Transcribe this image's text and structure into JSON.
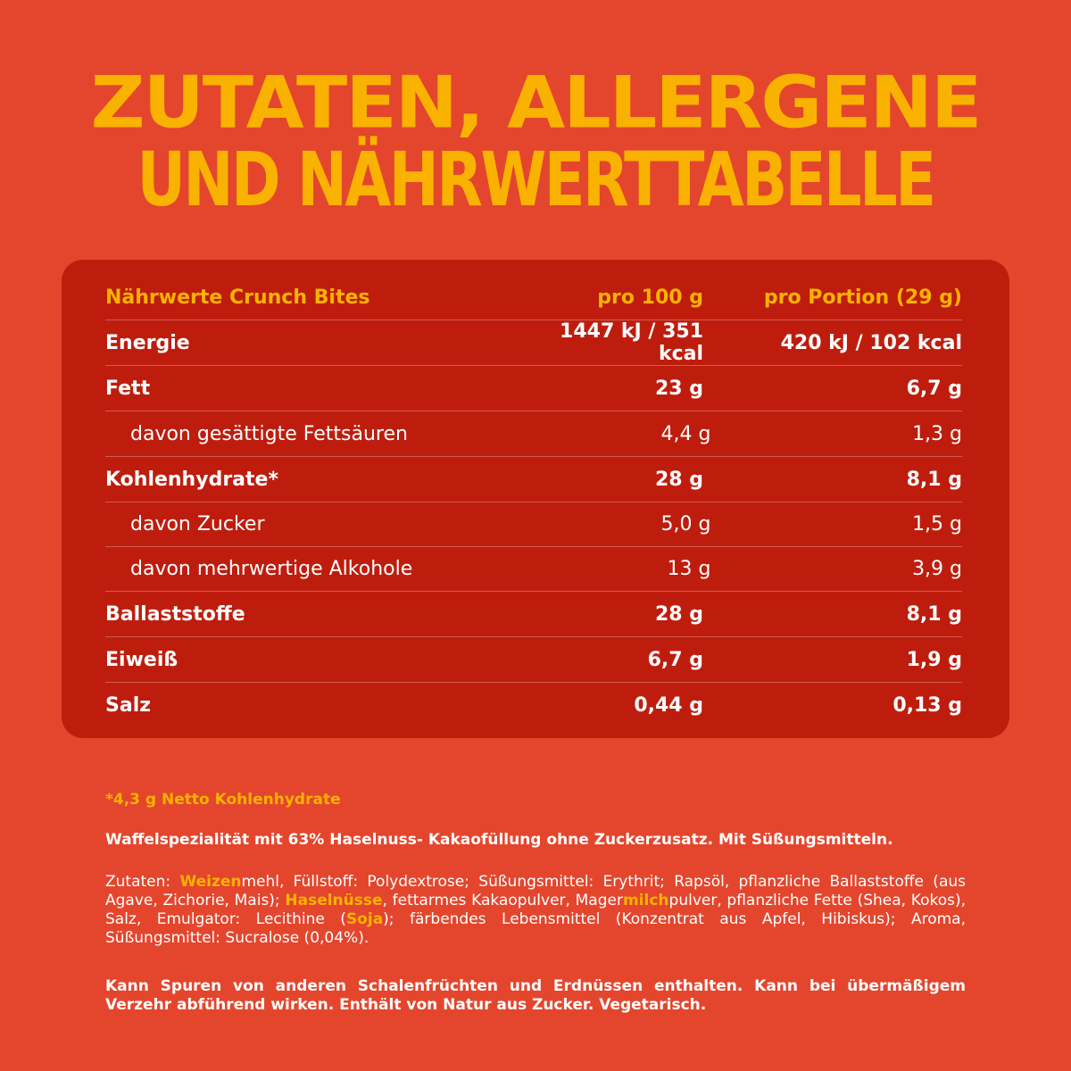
{
  "title": {
    "line1": "ZUTATEN, ALLERGENE",
    "line2": "UND NÄHRWERTTABELLE"
  },
  "table": {
    "header": {
      "label": "Nährwerte Crunch Bites",
      "per100": "pro 100 g",
      "perPortion": "pro Portion (29 g)"
    },
    "rows": [
      {
        "label": "Energie",
        "per100": "1447 kJ / 351 kcal",
        "perPortion": "420 kJ / 102 kcal"
      },
      {
        "label": "Fett",
        "per100": "23 g",
        "perPortion": "6,7 g"
      },
      {
        "label": "davon gesättigte Fettsäuren",
        "per100": "4,4 g",
        "perPortion": "1,3 g"
      },
      {
        "label": "Kohlenhydrate*",
        "per100": "28 g",
        "perPortion": "8,1 g"
      },
      {
        "label": "davon Zucker",
        "per100": "5,0 g",
        "perPortion": "1,5 g"
      },
      {
        "label": "davon mehrwertige Alkohole",
        "per100": "13 g",
        "perPortion": "3,9 g"
      },
      {
        "label": "Ballaststoffe",
        "per100": "28 g",
        "perPortion": "8,1 g"
      },
      {
        "label": "Eiweiß",
        "per100": "6,7 g",
        "perPortion": "1,9 g"
      },
      {
        "label": "Salz",
        "per100": "0,44 g",
        "perPortion": "0,13 g"
      }
    ]
  },
  "footnote": "*4,3 g Netto Kohlenhydrate",
  "description": "Waffelspezialität mit 63% Haselnuss- Kakaofüllung ohne Zuckerzusatz. Mit Süßungsmitteln.",
  "ingredients": {
    "p1": "Zutaten: ",
    "a1": "Weizen",
    "p2": "mehl, Füllstoff: Polydextrose; Süßungsmittel: Erythrit; Rapsöl, pflanzliche Ballaststoffe (aus Agave, Zichorie, Mais); ",
    "a2": "Haselnüsse",
    "p3": ", fettarmes Kakaopulver, Mager",
    "a3": "milch",
    "p4": "pulver, pflanzliche Fette (Shea, Kokos), Salz, Emulgator: Lecithine (",
    "a4": "Soja",
    "p5": "); färbendes Lebensmittel (Konzentrat aus Apfel, Hibiskus); Aroma, Süßungsmittel: Sucralose (0,04%)."
  },
  "warning": "Kann Spuren von anderen Schalenfrüchten und Erdnüssen enthalten. Kann bei übermäßigem Verzehr abführend wirken. Enthält von Natur aus Zucker. Vegetarisch.",
  "colors": {
    "background": "#e4462d",
    "table": "#be1d0e",
    "accent": "#f9b200",
    "text": "#ffffff"
  }
}
